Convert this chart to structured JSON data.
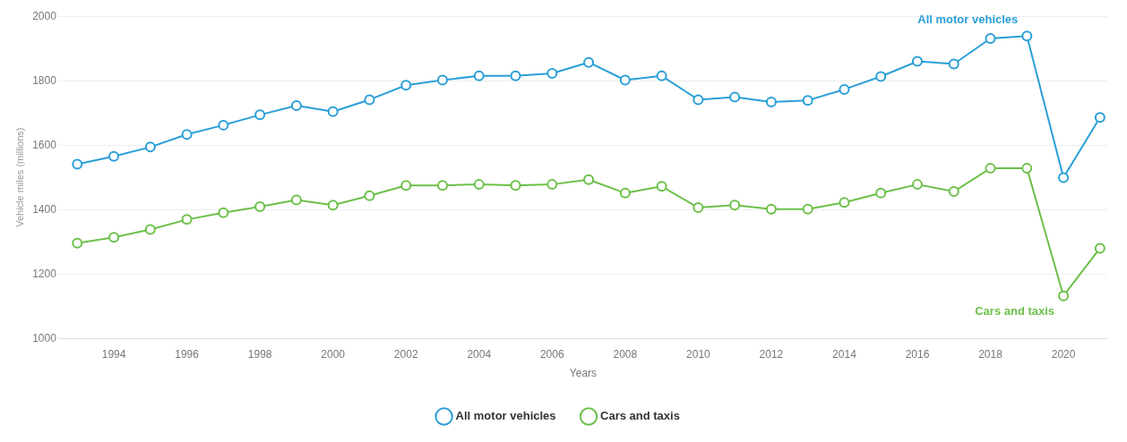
{
  "chart_data": {
    "type": "line",
    "xlabel": "Years",
    "ylabel": "Vehicle miles (millions)",
    "x": [
      1993,
      1994,
      1995,
      1996,
      1997,
      1998,
      1999,
      2000,
      2001,
      2002,
      2003,
      2004,
      2005,
      2006,
      2007,
      2008,
      2009,
      2010,
      2011,
      2012,
      2013,
      2014,
      2015,
      2016,
      2017,
      2018,
      2019,
      2020,
      2021
    ],
    "series": [
      {
        "name": "All motor vehicles",
        "color": "#2a9fd6",
        "values": [
          1541,
          1565,
          1594,
          1633,
          1662,
          1694,
          1723,
          1704,
          1741,
          1786,
          1802,
          1815,
          1815,
          1823,
          1857,
          1802,
          1815,
          1741,
          1749,
          1734,
          1739,
          1773,
          1813,
          1860,
          1852,
          1931,
          1939,
          1499,
          1686
        ]
      },
      {
        "name": "Cars and taxis",
        "color": "#6cc04a",
        "values": [
          1296,
          1314,
          1338,
          1369,
          1390,
          1409,
          1430,
          1414,
          1443,
          1475,
          1475,
          1478,
          1475,
          1478,
          1493,
          1451,
          1472,
          1406,
          1414,
          1401,
          1401,
          1422,
          1451,
          1478,
          1456,
          1528,
          1528,
          1132,
          1280
        ]
      }
    ],
    "xlim": [
      1992.5,
      2021.2
    ],
    "xticks": [
      1994,
      1996,
      1998,
      2000,
      2002,
      2004,
      2006,
      2008,
      2010,
      2012,
      2014,
      2016,
      2018,
      2020
    ],
    "ylim": [
      1000,
      2000
    ],
    "yticks": [
      1000,
      1200,
      1400,
      1600,
      1800,
      2000
    ],
    "grid": "y",
    "legend": "bottom",
    "marker": "circle",
    "line_style": "solid"
  }
}
